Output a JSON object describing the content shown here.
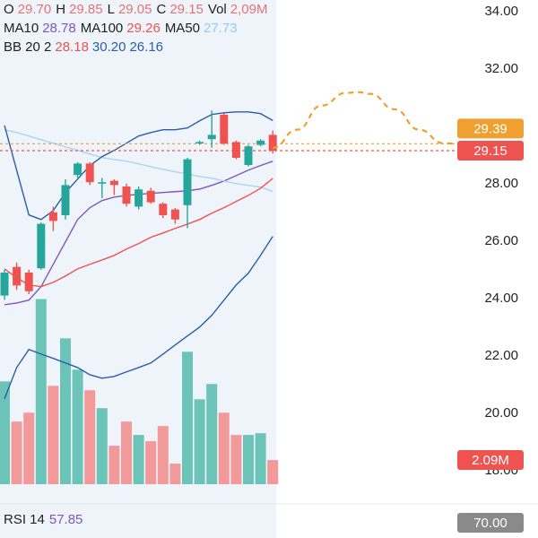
{
  "chart_data": {
    "type": "candlestick",
    "legend": [
      [
        {
          "label": "O",
          "value": "29.70",
          "color": "#e57373"
        },
        {
          "label": "H",
          "value": "29.85",
          "color": "#e57373"
        },
        {
          "label": "L",
          "value": "29.05",
          "color": "#e57373"
        },
        {
          "label": "C",
          "value": "29.15",
          "color": "#e57373"
        },
        {
          "label": "Vol",
          "value": "2,09M",
          "color": "#e57373"
        }
      ],
      [
        {
          "label": "MA10",
          "value": "28.78",
          "color": "#7e57c2"
        },
        {
          "label": "MA100",
          "value": "29.26",
          "color": "#ef5350"
        },
        {
          "label": "MA50",
          "value": "27.73",
          "color": "#90caf9"
        }
      ],
      [
        {
          "label": "BB 20 2",
          "value": "28.18",
          "color": "#ef5350"
        },
        {
          "value": "30.20",
          "color": "#2a5da8"
        },
        {
          "value": "26.16",
          "color": "#2a5da8"
        }
      ]
    ],
    "candles": {
      "open": [
        24.1,
        25.1,
        24.9,
        25.05,
        27.0,
        26.9,
        28.3,
        28.7,
        28.0,
        28.1,
        27.9,
        27.2,
        27.75,
        27.3,
        27.1,
        27.25,
        29.4,
        29.55,
        30.4,
        29.45,
        28.65,
        29.35,
        29.7
      ],
      "high": [
        25.0,
        25.25,
        25.0,
        26.65,
        27.2,
        28.15,
        28.75,
        28.75,
        28.2,
        28.15,
        28.0,
        27.9,
        27.85,
        27.35,
        27.15,
        28.9,
        29.5,
        30.55,
        30.45,
        29.5,
        29.35,
        29.55,
        29.85
      ],
      "low": [
        23.95,
        24.3,
        24.15,
        25.0,
        26.35,
        26.75,
        28.2,
        27.95,
        27.5,
        27.6,
        27.2,
        27.1,
        27.3,
        26.8,
        26.6,
        26.45,
        29.35,
        29.25,
        29.35,
        28.85,
        28.6,
        29.3,
        29.05
      ],
      "close": [
        24.9,
        24.45,
        24.25,
        26.6,
        26.7,
        27.95,
        28.7,
        28.05,
        28.05,
        27.95,
        27.3,
        27.8,
        27.35,
        26.9,
        26.75,
        28.85,
        29.45,
        29.7,
        29.4,
        28.9,
        29.3,
        29.5,
        29.15
      ],
      "up_color": "#26a69a",
      "down_color": "#ef5350"
    },
    "volume": {
      "values": [
        8.9,
        5.42,
        6.19,
        16.02,
        8.51,
        12.62,
        9.91,
        8.13,
        6.58,
        3.33,
        5.42,
        4.26,
        3.72,
        5.03,
        1.78,
        11.46,
        7.35,
        8.67,
        6.19,
        4.26,
        4.26,
        4.41,
        2.09
      ],
      "up_color": "#6cc4b8",
      "down_color": "#f29a9a",
      "vlim": [
        0,
        18
      ],
      "last": {
        "value": 2.09,
        "label": "2.09M"
      }
    },
    "overlays": [
      {
        "color": "#7e57c2",
        "values": [
          23.78,
          23.84,
          23.94,
          24.41,
          25.19,
          25.97,
          26.75,
          27.16,
          27.41,
          27.53,
          27.59,
          27.63,
          27.66,
          27.69,
          27.72,
          27.75,
          27.81,
          27.94,
          28.09,
          28.28,
          28.47,
          28.63,
          28.78
        ]
      },
      {
        "color": "#a9d4f2",
        "values": [
          29.88,
          29.78,
          29.66,
          29.53,
          29.41,
          29.28,
          29.16,
          29.03,
          28.91,
          28.84,
          28.78,
          28.69,
          28.59,
          28.5,
          28.41,
          28.34,
          28.25,
          28.19,
          28.09,
          28.0,
          27.94,
          27.88,
          27.73
        ]
      },
      {
        "color": "#ef5350",
        "values": [
          25.03,
          24.72,
          24.47,
          24.41,
          24.56,
          24.78,
          25.03,
          25.19,
          25.34,
          25.5,
          25.72,
          25.91,
          26.13,
          26.28,
          26.44,
          26.59,
          26.75,
          26.97,
          27.16,
          27.38,
          27.59,
          27.84,
          28.18
        ]
      },
      {
        "color": "#2a5da8",
        "values": [
          30.03,
          28.47,
          26.91,
          26.75,
          27.06,
          27.69,
          28.16,
          28.63,
          28.94,
          29.16,
          29.41,
          29.66,
          29.78,
          29.88,
          29.88,
          29.94,
          30.19,
          30.41,
          30.47,
          30.5,
          30.5,
          30.44,
          30.2
        ]
      },
      {
        "color": "#2a5da8",
        "values": [
          20.5,
          21.59,
          22.22,
          22.06,
          21.91,
          21.75,
          21.59,
          21.34,
          21.22,
          21.28,
          21.44,
          21.59,
          21.75,
          22.06,
          22.38,
          22.69,
          23.0,
          23.41,
          23.94,
          24.47,
          24.88,
          25.5,
          26.16
        ]
      }
    ],
    "forecast": {
      "color": "#f0a030",
      "x": [
        22,
        24,
        26,
        28,
        29,
        30,
        32,
        34,
        36,
        37
      ],
      "values": [
        29.25,
        29.88,
        30.72,
        31.16,
        31.19,
        31.13,
        30.59,
        29.88,
        29.41,
        29.39
      ]
    },
    "price_lines": [
      {
        "value": 29.39,
        "color": "#f0a030"
      },
      {
        "value": 29.15,
        "color": "#ef5350"
      }
    ],
    "ylim": [
      16.9,
      34.4
    ],
    "yticks": [
      {
        "value": 34,
        "label": "34.00"
      },
      {
        "value": 32,
        "label": "32.00"
      },
      {
        "value": 28,
        "label": "28.00"
      },
      {
        "value": 26,
        "label": "26.00"
      },
      {
        "value": 24,
        "label": "24.00"
      },
      {
        "value": 22,
        "label": "22.00"
      },
      {
        "value": 20,
        "label": "20.00"
      },
      {
        "value": 18,
        "label": "18.00"
      }
    ],
    "rsi": {
      "label": "RSI 14",
      "value": 57.85,
      "value_color": "#7e57c2",
      "level": {
        "value": 70,
        "label": "70.00"
      }
    }
  }
}
